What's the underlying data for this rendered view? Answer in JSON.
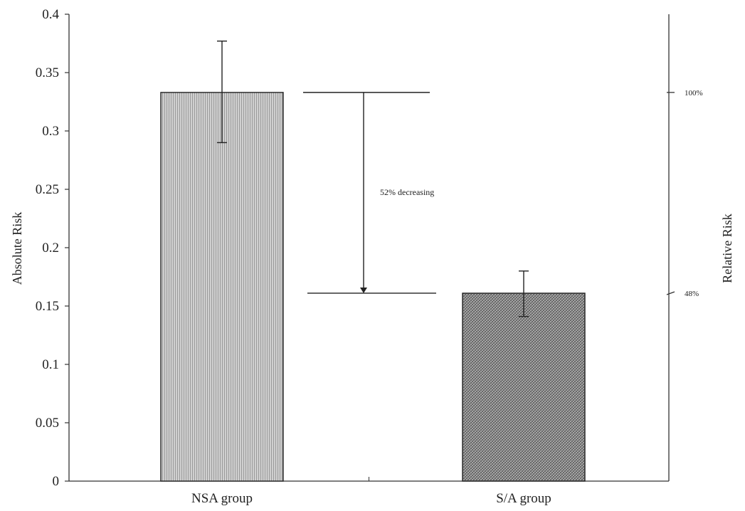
{
  "chart_data": {
    "type": "bar",
    "title": "",
    "categories": [
      "NSA group",
      "S/A group"
    ],
    "values": [
      0.333,
      0.161
    ],
    "error_low": [
      0.29,
      0.141
    ],
    "error_high": [
      0.377,
      0.18
    ],
    "ylabel": "Absolute Risk",
    "y2label": "Relative Risk",
    "ylim": [
      0,
      0.4
    ],
    "yticks": [
      "0",
      "0.05",
      "0.1",
      "0.15",
      "0.2",
      "0.25",
      "0.3",
      "0.35",
      "0.4"
    ],
    "y2ticks": [
      {
        "value": 0.333,
        "label": "100%"
      },
      {
        "value": 0.161,
        "label": "48%"
      }
    ],
    "annotation": {
      "text": "52% decreasing",
      "from": 0.333,
      "to": 0.161
    },
    "grid": false,
    "colors": {
      "bar1": "#c4c4c4",
      "bar2": "#8c8c8c",
      "axis": "#333333"
    }
  }
}
